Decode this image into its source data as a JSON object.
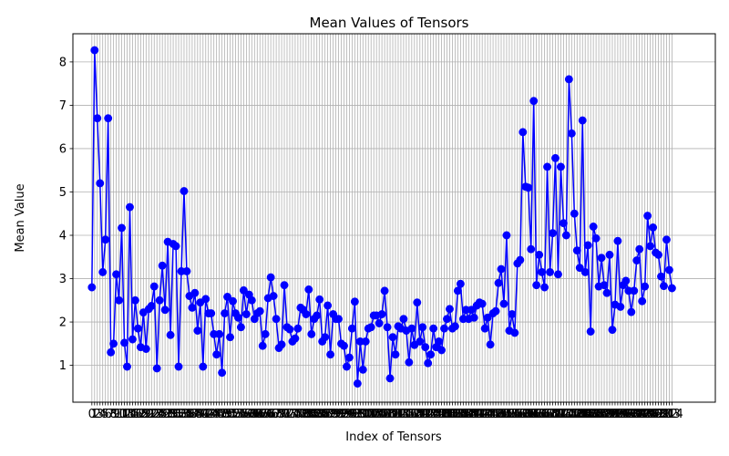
{
  "chart_data": {
    "type": "line",
    "title": "Mean Values of Tensors",
    "xlabel": "Index of Tensors",
    "ylabel": "Mean Value",
    "xlim": [
      -7,
      230
    ],
    "ylim": [
      0.15,
      8.65
    ],
    "yticks": [
      1,
      2,
      3,
      4,
      5,
      6,
      7,
      8
    ],
    "grid": true,
    "series": [
      {
        "color": "#0000ff",
        "marker": "circle",
        "values": [
          2.8,
          8.27,
          6.7,
          5.2,
          3.15,
          3.9,
          6.7,
          1.3,
          1.5,
          3.1,
          2.5,
          4.17,
          1.52,
          0.97,
          4.65,
          1.6,
          2.5,
          1.85,
          1.42,
          2.22,
          1.38,
          2.3,
          2.37,
          2.82,
          0.93,
          2.5,
          3.3,
          2.28,
          3.85,
          1.7,
          3.8,
          3.75,
          0.97,
          3.17,
          5.02,
          3.17,
          2.6,
          2.33,
          2.67,
          1.8,
          2.45,
          0.97,
          2.53,
          2.2,
          2.2,
          1.72,
          1.25,
          1.72,
          0.83,
          2.2,
          2.58,
          1.65,
          2.48,
          2.2,
          2.1,
          1.88,
          2.73,
          2.18,
          2.63,
          2.5,
          2.07,
          2.2,
          2.25,
          1.45,
          1.72,
          2.55,
          3.03,
          2.6,
          2.07,
          1.4,
          1.48,
          2.85,
          1.88,
          1.83,
          1.55,
          1.62,
          1.85,
          2.33,
          2.28,
          2.18,
          2.75,
          1.72,
          2.07,
          2.15,
          2.52,
          1.55,
          1.65,
          2.38,
          1.25,
          2.18,
          2.07,
          2.07,
          1.5,
          1.45,
          0.97,
          1.18,
          1.85,
          2.47,
          0.58,
          1.55,
          0.9,
          1.55,
          1.85,
          1.88,
          2.15,
          2.15,
          1.97,
          2.18,
          2.72,
          1.88,
          0.7,
          1.65,
          1.25,
          1.9,
          1.85,
          2.07,
          1.8,
          1.07,
          1.85,
          1.47,
          2.45,
          1.55,
          1.88,
          1.42,
          1.05,
          1.25,
          1.85,
          1.42,
          1.55,
          1.35,
          1.85,
          2.07,
          2.3,
          1.85,
          1.9,
          2.72,
          2.88,
          2.07,
          2.28,
          2.07,
          2.28,
          2.1,
          2.38,
          2.45,
          2.42,
          1.85,
          2.1,
          1.48,
          2.2,
          2.25,
          2.9,
          3.22,
          2.42,
          4.0,
          1.8,
          2.18,
          1.75,
          3.35,
          3.43,
          6.38,
          5.12,
          5.1,
          3.68,
          7.1,
          2.85,
          3.55,
          3.15,
          2.8,
          5.58,
          3.15,
          4.05,
          5.78,
          3.1,
          5.58,
          4.28,
          4.0,
          7.6,
          6.35,
          4.5,
          3.65,
          3.25,
          6.65,
          3.15,
          3.77,
          1.78,
          4.2,
          3.93,
          2.82,
          3.48,
          2.85,
          2.67,
          3.55,
          1.82,
          2.4,
          3.87,
          2.35,
          2.85,
          2.95,
          2.72,
          2.23,
          2.72,
          3.42,
          3.68,
          2.48,
          2.82,
          4.45,
          3.75,
          4.18,
          3.6,
          3.55,
          3.05,
          2.83,
          3.9,
          3.2,
          2.78
        ]
      }
    ]
  }
}
